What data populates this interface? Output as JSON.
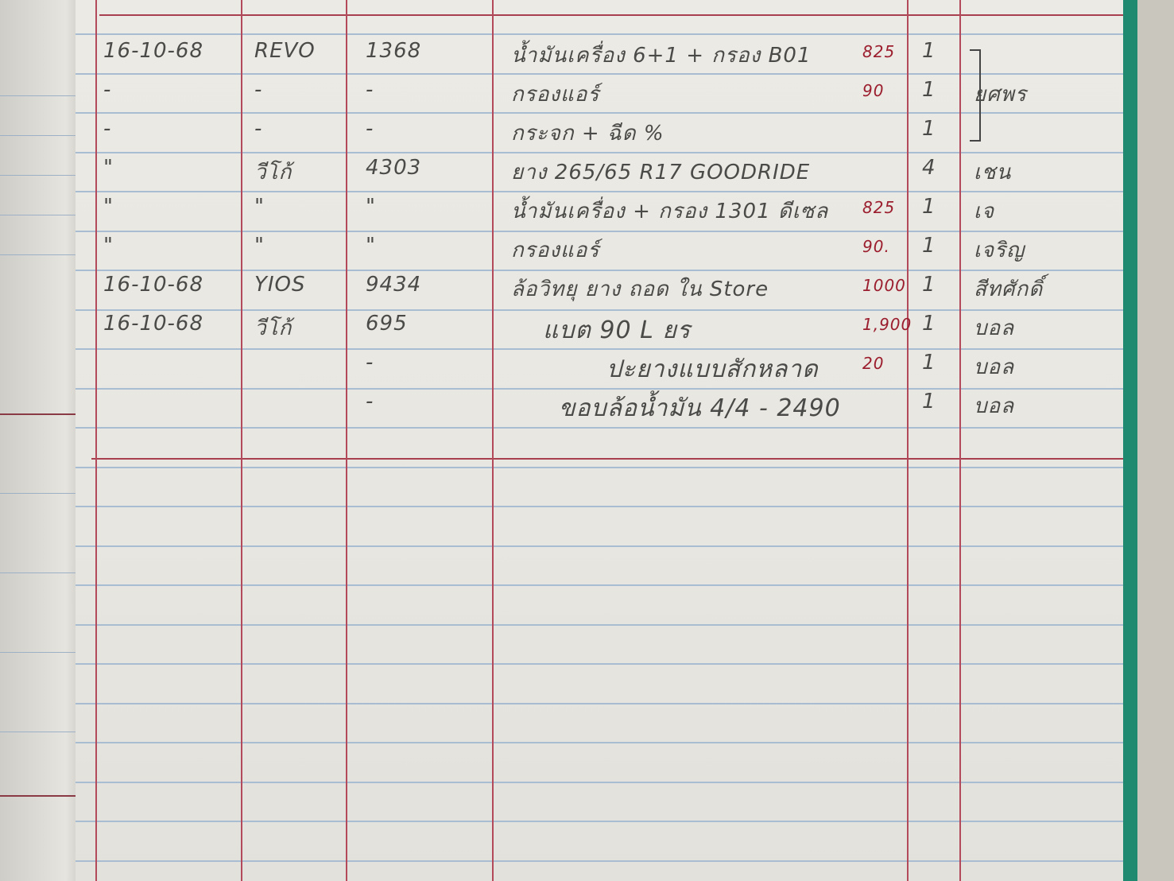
{
  "ledger": {
    "rows": [
      {
        "date": "16-10-68",
        "car": "REVO",
        "plate": "1368",
        "item": "น้ำมันเครื่อง 6+1 + กรอง B01",
        "price": "825",
        "qty": "1",
        "staff": ""
      },
      {
        "date": "-",
        "car": "-",
        "plate": "-",
        "item": "กรองแอร์",
        "price": "90",
        "qty": "1",
        "staff": "ยศพร"
      },
      {
        "date": "-",
        "car": "-",
        "plate": "-",
        "item": "กระจก + ฉีด %",
        "price": "",
        "qty": "1",
        "staff": ""
      },
      {
        "date": "\"",
        "car": "วีโก้",
        "plate": "4303",
        "item": "ยาง 265/65 R17 GOODRIDE",
        "price": "",
        "qty": "4",
        "staff": "เชน"
      },
      {
        "date": "\"",
        "car": "\"",
        "plate": "\"",
        "item": "น้ำมันเครื่อง + กรอง 1301 ดีเซล",
        "price": "825",
        "qty": "1",
        "staff": "เจ"
      },
      {
        "date": "\"",
        "car": "\"",
        "plate": "\"",
        "item": "กรองแอร์",
        "price": "90.",
        "qty": "1",
        "staff": "เจริญ"
      },
      {
        "date": "16-10-68",
        "car": "YIOS",
        "plate": "9434",
        "item": "ล้อวิทยุ ยาง ถอด ใน Store",
        "price": "1000",
        "qty": "1",
        "staff": "สีทศักดิ์"
      },
      {
        "date": "16-10-68",
        "car": "วีโก้",
        "plate": "695",
        "item": "แบต 90 L ยร",
        "price": "1,900",
        "qty": "1",
        "staff": "บอล"
      },
      {
        "date": "",
        "car": "",
        "plate": "-",
        "item": "ปะยางแบบสักหลาด",
        "price": "20",
        "qty": "1",
        "staff": "บอล"
      },
      {
        "date": "",
        "car": "",
        "plate": "-",
        "item": "ขอบล้อน้ำมัน 4/4 - 2490",
        "price": "",
        "qty": "1",
        "staff": "บอล"
      }
    ]
  },
  "colors": {
    "pencil": "#4a4a48",
    "red_ink": "#9b1e2e",
    "rule_red": "#b34a5c",
    "rule_blue": "#a8bdd2",
    "binding": "#1f8a70"
  }
}
